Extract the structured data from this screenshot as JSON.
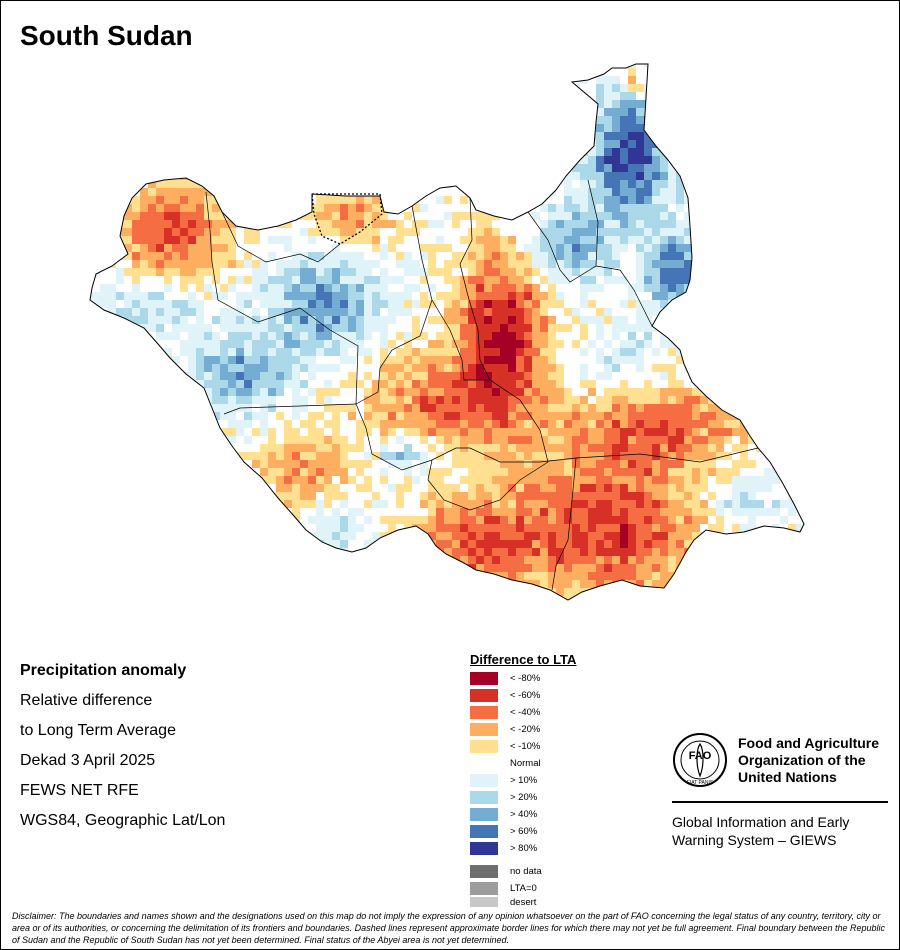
{
  "title": "South Sudan",
  "info": {
    "heading": "Precipitation anomaly",
    "line1": "Relative difference",
    "line2": "to Long Term Average",
    "line3": "Dekad 3 April 2025",
    "line4": "FEWS NET RFE",
    "line5": "WGS84, Geographic Lat/Lon"
  },
  "legend": {
    "title": "Difference to LTA",
    "items": [
      {
        "label": "< -80%",
        "color": "#a50026"
      },
      {
        "label": "< -60%",
        "color": "#d73027"
      },
      {
        "label": "< -40%",
        "color": "#f46d43"
      },
      {
        "label": "< -20%",
        "color": "#fdae61"
      },
      {
        "label": "< -10%",
        "color": "#fee090"
      },
      {
        "label": "Normal",
        "color": "#ffffff"
      },
      {
        "label": "> 10%",
        "color": "#e0f3f8"
      },
      {
        "label": "> 20%",
        "color": "#abd9e9"
      },
      {
        "label": "> 40%",
        "color": "#74add1"
      },
      {
        "label": "> 60%",
        "color": "#4575b4"
      },
      {
        "label": "> 80%",
        "color": "#313695"
      }
    ],
    "extra": [
      {
        "label": "no data",
        "color": "#6e6e6e"
      },
      {
        "label": "LTA=0",
        "color": "#9c9c9c"
      },
      {
        "label": "desert",
        "color": "#c8c8c8"
      }
    ]
  },
  "fao": {
    "logo_text": "FAO",
    "logo_motto": "FIAT PANIS",
    "name_line1": "Food and Agriculture",
    "name_line2": "Organization of the",
    "name_line3": "United Nations",
    "giews_line1": "Global Information and Early",
    "giews_line2": "Warning System – GIEWS"
  },
  "disclaimer": "Disclaimer: The boundaries and names shown and the designations used on this map do not imply the expression of any opinion whatsoever on the part of FAO concerning the legal status of any country, territory, city or area or of its authorities, or concerning the delimitation of its frontiers and boundaries. Dashed lines represent approximate border lines for which there may not yet be full agreement. Final boundary between the Republic of Sudan and the Republic of South Sudan has not yet been determined. Final status of the Abyei area is not yet determined."
}
